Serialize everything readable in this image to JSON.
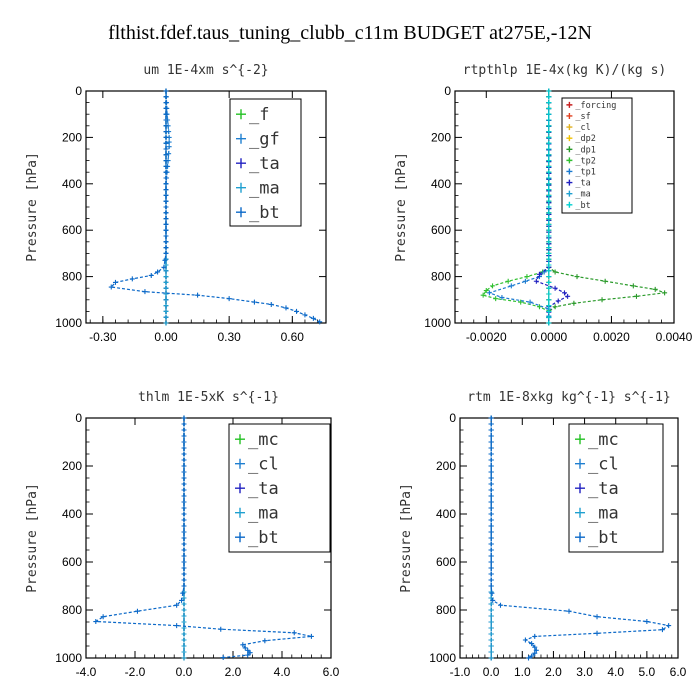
{
  "figure_title": "flthist.fdef.taus_tuning_clubb_c11m  BUDGET at275E,-12N",
  "chart_data": [
    {
      "type": "line",
      "title": "um  1E-4xm s^{-2}",
      "ylabel": "Pressure [hPa]",
      "xlim": [
        -0.38,
        0.76
      ],
      "ylim": [
        0,
        1000
      ],
      "y_inverted": true,
      "xticks": [
        "-0.30",
        "0.00",
        "0.30",
        "0.60"
      ],
      "xtick_values": [
        -0.3,
        0.0,
        0.3,
        0.6
      ],
      "yticks": [
        "0",
        "200",
        "400",
        "600",
        "800",
        "1000"
      ],
      "ytick_values": [
        0,
        200,
        400,
        600,
        800,
        1000
      ],
      "legend": {
        "position": "top-right",
        "entries": [
          "_f",
          "_gf",
          "_ta",
          "_ma",
          "_bt"
        ]
      },
      "series": [
        {
          "name": "_f",
          "color": "#22c022",
          "points": [
            [
              0.0,
              0
            ],
            [
              0.0,
              100
            ],
            [
              0.0,
              200
            ],
            [
              0.0,
              300
            ],
            [
              0.0,
              400
            ],
            [
              0.0,
              500
            ],
            [
              0.0,
              600
            ],
            [
              0.0,
              700
            ],
            [
              0.0,
              800
            ],
            [
              0.0,
              900
            ],
            [
              0.0,
              1000
            ]
          ]
        },
        {
          "name": "_gf",
          "color": "#1f7fd0",
          "points": [
            [
              0.0,
              0
            ],
            [
              0.005,
              100
            ],
            [
              0.01,
              150
            ],
            [
              0.015,
              200
            ],
            [
              0.015,
              240
            ],
            [
              0.01,
              300
            ],
            [
              0.0,
              400
            ],
            [
              0.0,
              600
            ],
            [
              0.0,
              800
            ],
            [
              0.0,
              1000
            ]
          ]
        },
        {
          "name": "_ta",
          "color": "#2020c0",
          "points": [
            [
              0.0,
              0
            ],
            [
              0.0,
              500
            ],
            [
              0.0,
              1000
            ]
          ]
        },
        {
          "name": "_ma",
          "color": "#1fa0d0",
          "points": [
            [
              0.0,
              0
            ],
            [
              0.0,
              500
            ],
            [
              0.0,
              1000
            ]
          ]
        },
        {
          "name": "_bt",
          "color": "#0a68c8",
          "points": [
            [
              0.0,
              0
            ],
            [
              0.0,
              700
            ],
            [
              -0.01,
              760
            ],
            [
              -0.04,
              780
            ],
            [
              -0.07,
              795
            ],
            [
              -0.16,
              810
            ],
            [
              -0.24,
              825
            ],
            [
              -0.26,
              845
            ],
            [
              -0.1,
              865
            ],
            [
              0.15,
              880
            ],
            [
              0.3,
              895
            ],
            [
              0.42,
              910
            ],
            [
              0.5,
              920
            ],
            [
              0.57,
              935
            ],
            [
              0.62,
              950
            ],
            [
              0.66,
              965
            ],
            [
              0.7,
              980
            ],
            [
              0.73,
              995
            ]
          ]
        }
      ]
    },
    {
      "type": "line",
      "title": "rtpthlp  1E-4x(kg K)/(kg s)",
      "ylabel": "Pressure [hPa]",
      "xlim": [
        -0.003,
        0.004
      ],
      "ylim": [
        0,
        1000
      ],
      "y_inverted": true,
      "xticks": [
        "-0.0020",
        "0.0000",
        "0.0020",
        "0.0040"
      ],
      "xtick_values": [
        -0.002,
        0.0,
        0.002,
        0.004
      ],
      "yticks": [
        "0",
        "200",
        "400",
        "600",
        "800",
        "1000"
      ],
      "ytick_values": [
        0,
        200,
        400,
        600,
        800,
        1000
      ],
      "legend": {
        "position": "top-right",
        "entries": [
          "_forcing",
          "_sf",
          "_cl",
          "_dp2",
          "_dp1",
          "_tp2",
          "_tp1",
          "_ta",
          "_ma",
          "_bt"
        ]
      },
      "series": [
        {
          "name": "_forcing",
          "color": "#c82020",
          "points": [
            [
              0.0,
              0
            ],
            [
              0.0,
              500
            ],
            [
              0.0,
              1000
            ]
          ]
        },
        {
          "name": "_sf",
          "color": "#e04020",
          "points": [
            [
              0.0,
              0
            ],
            [
              0.0,
              500
            ],
            [
              0.0,
              1000
            ]
          ]
        },
        {
          "name": "_cl",
          "color": "#e0b020",
          "points": [
            [
              0.0,
              0
            ],
            [
              0.0,
              500
            ],
            [
              0.0,
              1000
            ]
          ]
        },
        {
          "name": "_dp2",
          "color": "#f0c000",
          "points": [
            [
              0.0,
              0
            ],
            [
              0.0,
              500
            ],
            [
              0.0,
              1000
            ]
          ]
        },
        {
          "name": "_dp1",
          "color": "#2a9a2a",
          "points": [
            [
              0.0,
              0
            ],
            [
              0.0,
              760
            ],
            [
              0.0002,
              780
            ],
            [
              0.0009,
              800
            ],
            [
              0.0018,
              820
            ],
            [
              0.0027,
              840
            ],
            [
              0.0034,
              855
            ],
            [
              0.0037,
              870
            ],
            [
              0.0028,
              885
            ],
            [
              0.0017,
              900
            ],
            [
              0.0008,
              915
            ],
            [
              0.0002,
              930
            ],
            [
              0.0,
              950
            ],
            [
              0.0,
              1000
            ]
          ]
        },
        {
          "name": "_tp2",
          "color": "#30c030",
          "points": [
            [
              0.0,
              0
            ],
            [
              0.0,
              760
            ],
            [
              -0.0002,
              780
            ],
            [
              -0.0007,
              800
            ],
            [
              -0.0013,
              820
            ],
            [
              -0.0018,
              840
            ],
            [
              -0.002,
              860
            ],
            [
              -0.0021,
              880
            ],
            [
              -0.0017,
              895
            ],
            [
              -0.0009,
              910
            ],
            [
              -0.0003,
              930
            ],
            [
              0.0,
              950
            ],
            [
              0.0,
              1000
            ]
          ]
        },
        {
          "name": "_tp1",
          "color": "#1a7ad0",
          "points": [
            [
              0.0,
              0
            ],
            [
              0.0,
              760
            ],
            [
              -0.0003,
              800
            ],
            [
              -0.0012,
              840
            ],
            [
              -0.0019,
              870
            ],
            [
              -0.0015,
              890
            ],
            [
              -0.0006,
              910
            ],
            [
              0.0,
              940
            ],
            [
              0.0,
              1000
            ]
          ]
        },
        {
          "name": "_ta",
          "color": "#2020c0",
          "points": [
            [
              0.0,
              0
            ],
            [
              0.0,
              760
            ],
            [
              -0.0003,
              790
            ],
            [
              -0.0004,
              820
            ],
            [
              0.0002,
              850
            ],
            [
              0.0005,
              870
            ],
            [
              0.0006,
              885
            ],
            [
              0.0003,
              905
            ],
            [
              0.0,
              930
            ],
            [
              0.0,
              1000
            ]
          ]
        },
        {
          "name": "_ma",
          "color": "#1fa0d0",
          "points": [
            [
              0.0,
              0
            ],
            [
              0.0,
              500
            ],
            [
              0.0,
              1000
            ]
          ]
        },
        {
          "name": "_bt",
          "color": "#00d0d0",
          "points": [
            [
              0.0,
              0
            ],
            [
              0.0,
              500
            ],
            [
              0.0,
              1000
            ]
          ]
        }
      ]
    },
    {
      "type": "line",
      "title": "thlm  1E-5xK s^{-1}",
      "ylabel": "Pressure [hPa]",
      "xlim": [
        -4.0,
        6.0
      ],
      "ylim": [
        0,
        1000
      ],
      "y_inverted": true,
      "xticks": [
        "-4.0",
        "-2.0",
        "0.0",
        "2.0",
        "4.0",
        "6.0"
      ],
      "xtick_values": [
        -4,
        -2,
        0,
        2,
        4,
        6
      ],
      "yticks": [
        "0",
        "200",
        "400",
        "600",
        "800",
        "1000"
      ],
      "ytick_values": [
        0,
        200,
        400,
        600,
        800,
        1000
      ],
      "legend": {
        "position": "top-right",
        "entries": [
          "_mc",
          "_cl",
          "_ta",
          "_ma",
          "_bt"
        ]
      },
      "series": [
        {
          "name": "_mc",
          "color": "#22c022",
          "points": [
            [
              0.0,
              0
            ],
            [
              0.0,
              100
            ],
            [
              0.0,
              200
            ],
            [
              0.0,
              300
            ],
            [
              0.0,
              400
            ],
            [
              0.0,
              500
            ],
            [
              0.0,
              600
            ],
            [
              0.0,
              700
            ],
            [
              0.0,
              800
            ],
            [
              0.0,
              900
            ],
            [
              0.0,
              1000
            ]
          ]
        },
        {
          "name": "_cl",
          "color": "#1f7fd0",
          "points": [
            [
              0.0,
              0
            ],
            [
              0.0,
              500
            ],
            [
              0.0,
              1000
            ]
          ]
        },
        {
          "name": "_ta",
          "color": "#2020c0",
          "points": [
            [
              0.0,
              0
            ],
            [
              0.0,
              500
            ],
            [
              0.0,
              1000
            ]
          ]
        },
        {
          "name": "_ma",
          "color": "#1fa0d0",
          "points": [
            [
              0.0,
              0
            ],
            [
              0.0,
              500
            ],
            [
              0.0,
              1000
            ]
          ]
        },
        {
          "name": "_bt",
          "color": "#0a68c8",
          "points": [
            [
              0.0,
              0
            ],
            [
              0.0,
              700
            ],
            [
              -0.1,
              760
            ],
            [
              -0.3,
              780
            ],
            [
              -1.9,
              805
            ],
            [
              -3.3,
              828
            ],
            [
              -3.6,
              848
            ],
            [
              -0.3,
              865
            ],
            [
              1.5,
              880
            ],
            [
              4.5,
              895
            ],
            [
              5.2,
              910
            ],
            [
              3.3,
              928
            ],
            [
              2.4,
              945
            ],
            [
              2.5,
              958
            ],
            [
              2.6,
              968
            ],
            [
              2.7,
              978
            ],
            [
              2.6,
              988
            ],
            [
              1.6,
              998
            ]
          ]
        }
      ]
    },
    {
      "type": "line",
      "title": "rtm  1E-8xkg kg^{-1} s^{-1}",
      "ylabel": "Pressure [hPa]",
      "xlim": [
        -1.0,
        6.0
      ],
      "ylim": [
        0,
        1000
      ],
      "y_inverted": true,
      "xticks": [
        "-1.0",
        "0.0",
        "1.0",
        "2.0",
        "3.0",
        "4.0",
        "5.0",
        "6.0"
      ],
      "xtick_values": [
        -1,
        0,
        1,
        2,
        3,
        4,
        5,
        6
      ],
      "yticks": [
        "0",
        "200",
        "400",
        "600",
        "800",
        "1000"
      ],
      "ytick_values": [
        0,
        200,
        400,
        600,
        800,
        1000
      ],
      "legend": {
        "position": "top-right",
        "entries": [
          "_mc",
          "_cl",
          "_ta",
          "_ma",
          "_bt"
        ]
      },
      "series": [
        {
          "name": "_mc",
          "color": "#22c022",
          "points": [
            [
              0.0,
              0
            ],
            [
              0.0,
              100
            ],
            [
              0.0,
              200
            ],
            [
              0.0,
              300
            ],
            [
              0.0,
              400
            ],
            [
              0.0,
              500
            ],
            [
              0.0,
              600
            ],
            [
              0.0,
              700
            ],
            [
              0.0,
              800
            ],
            [
              0.0,
              900
            ],
            [
              0.0,
              1000
            ]
          ]
        },
        {
          "name": "_cl",
          "color": "#1f7fd0",
          "points": [
            [
              0.0,
              0
            ],
            [
              0.0,
              500
            ],
            [
              0.0,
              1000
            ]
          ]
        },
        {
          "name": "_ta",
          "color": "#2020c0",
          "points": [
            [
              0.0,
              0
            ],
            [
              0.0,
              500
            ],
            [
              0.0,
              1000
            ]
          ]
        },
        {
          "name": "_ma",
          "color": "#1fa0d0",
          "points": [
            [
              0.0,
              0
            ],
            [
              0.0,
              500
            ],
            [
              0.0,
              1000
            ]
          ]
        },
        {
          "name": "_bt",
          "color": "#0a68c8",
          "points": [
            [
              0.0,
              0
            ],
            [
              0.0,
              700
            ],
            [
              0.05,
              760
            ],
            [
              0.3,
              780
            ],
            [
              2.5,
              805
            ],
            [
              3.4,
              828
            ],
            [
              5.0,
              848
            ],
            [
              5.7,
              865
            ],
            [
              5.5,
              882
            ],
            [
              3.4,
              897
            ],
            [
              1.4,
              910
            ],
            [
              1.1,
              925
            ],
            [
              1.3,
              940
            ],
            [
              1.4,
              955
            ],
            [
              1.45,
              968
            ],
            [
              1.4,
              980
            ],
            [
              1.3,
              992
            ],
            [
              1.2,
              1000
            ]
          ]
        }
      ]
    }
  ]
}
